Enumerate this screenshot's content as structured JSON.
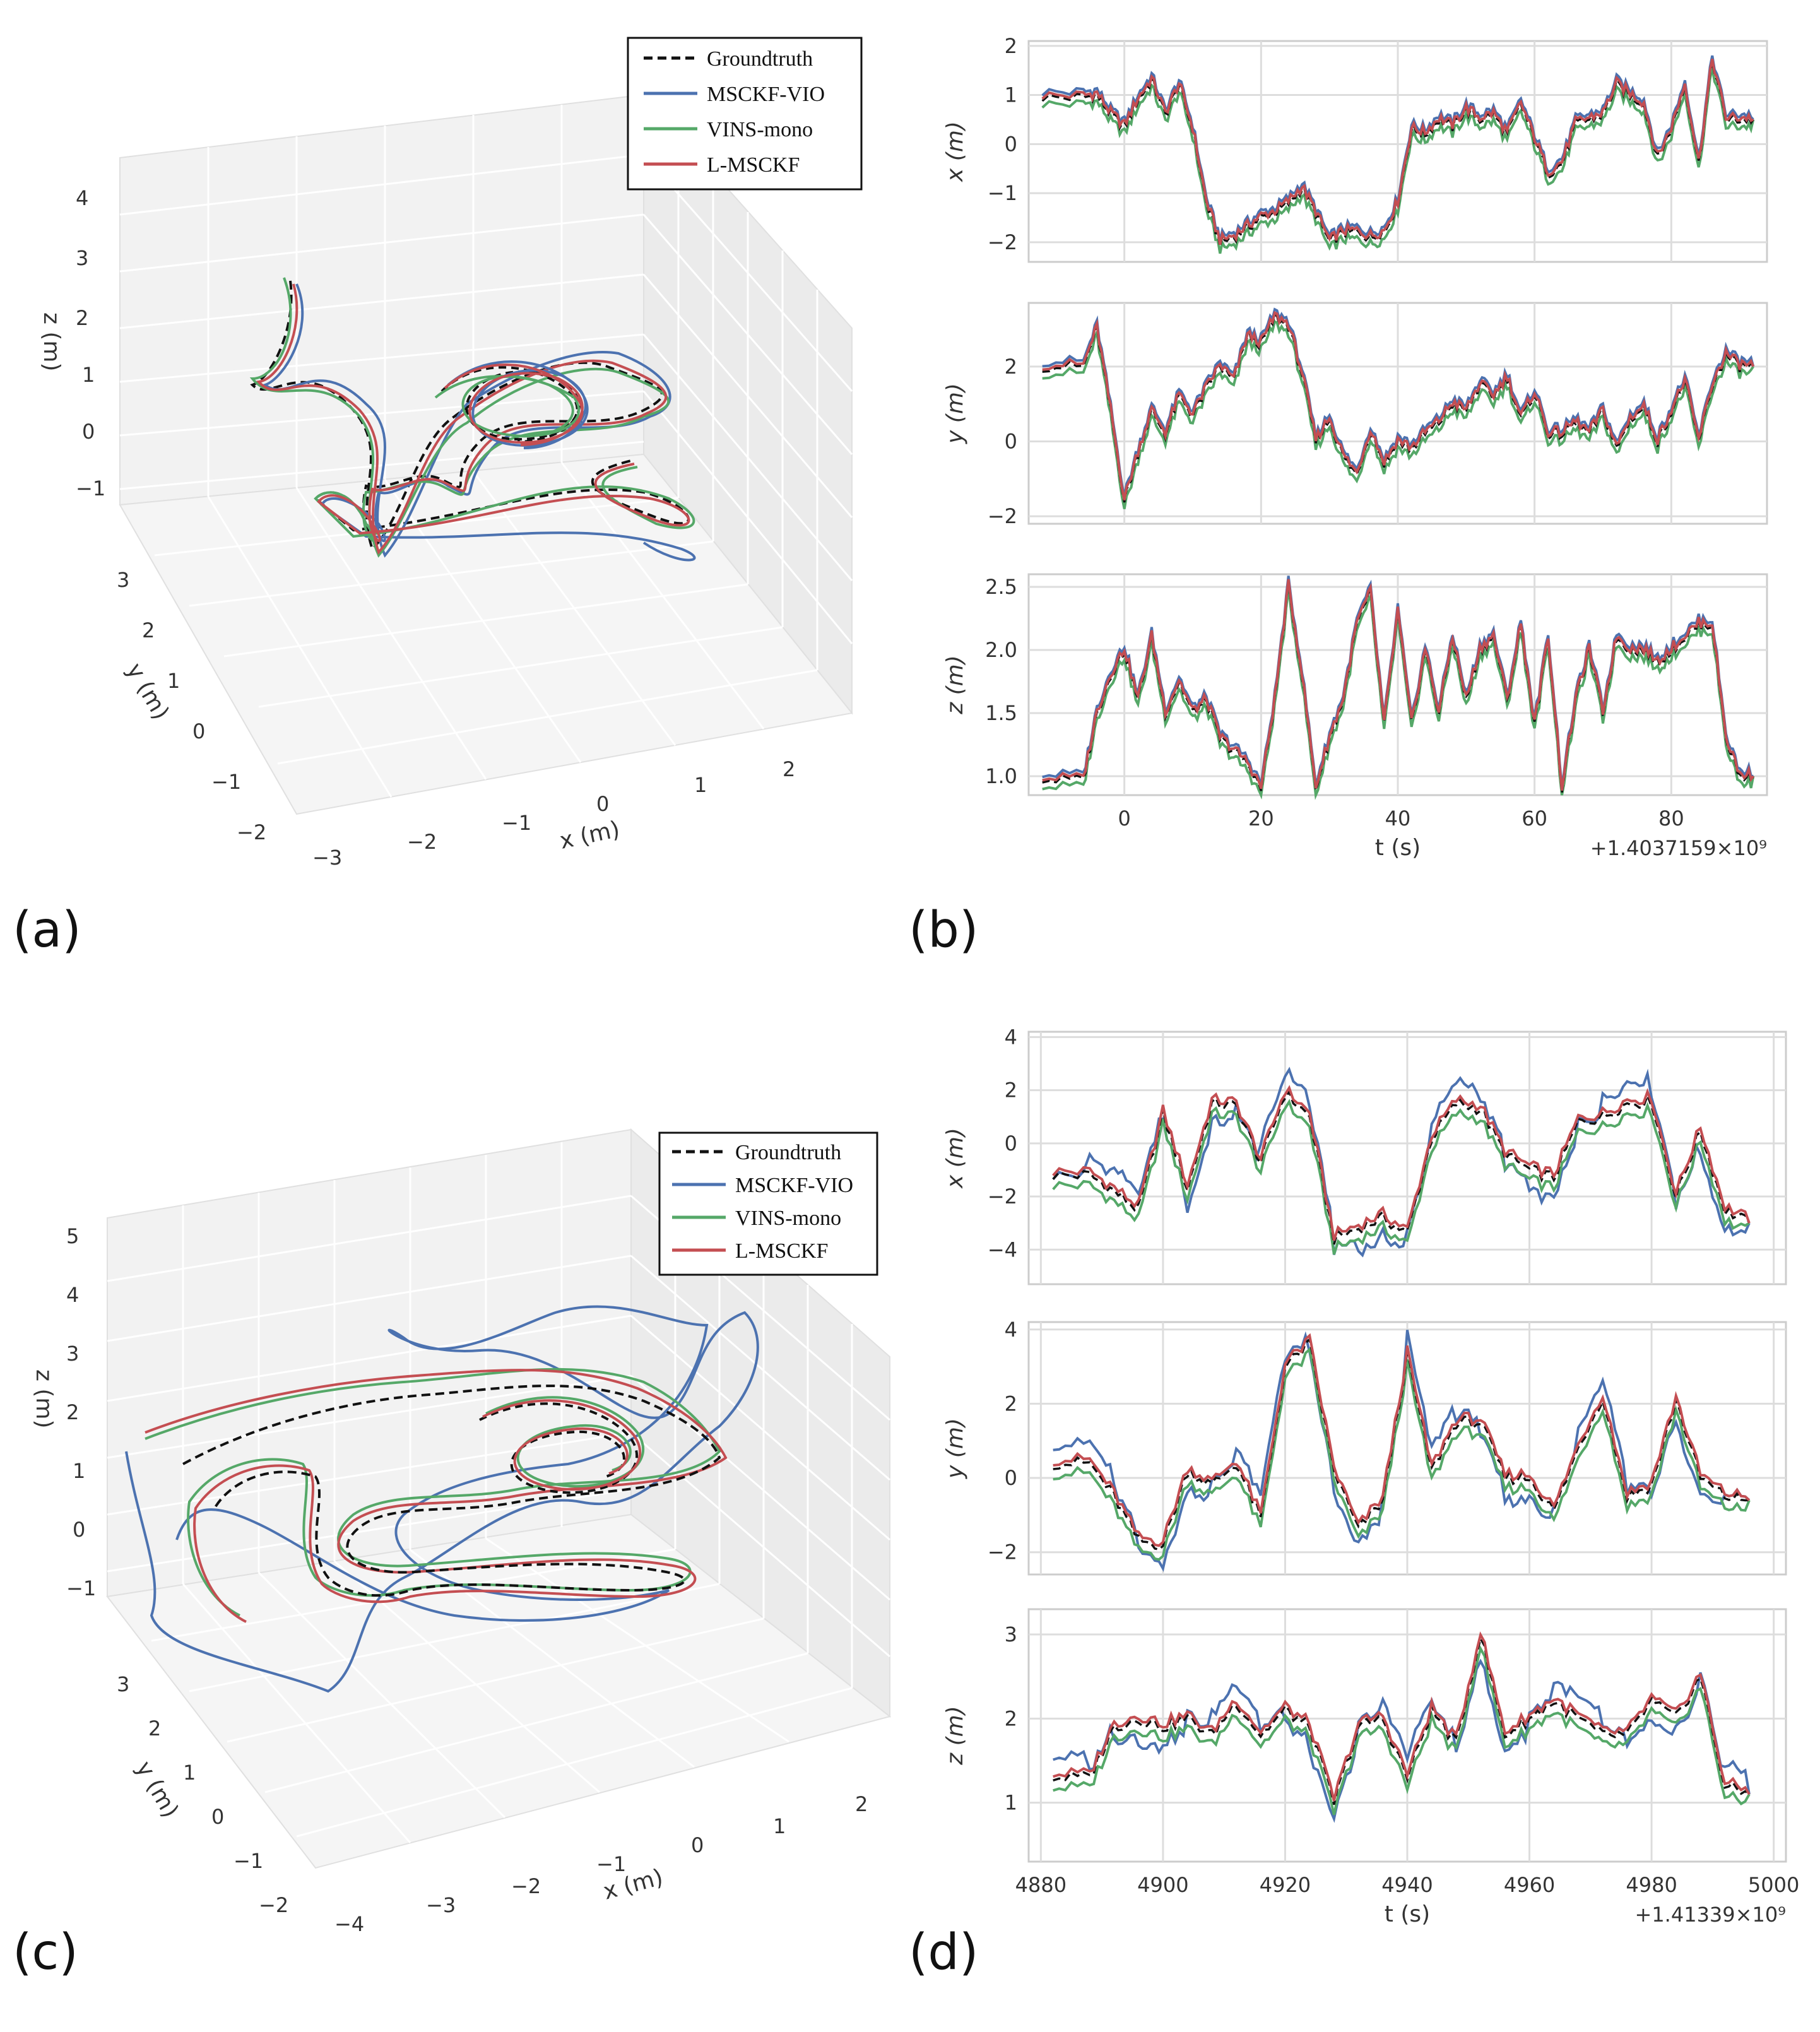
{
  "panels": [
    {
      "id": "a",
      "label": "(a)"
    },
    {
      "id": "b",
      "label": "(b)"
    },
    {
      "id": "c",
      "label": "(c)"
    },
    {
      "id": "d",
      "label": "(d)"
    }
  ],
  "legend": [
    {
      "name": "Groundtruth",
      "color": "#111111",
      "dash": true
    },
    {
      "name": "MSCKF-VIO",
      "color": "#4c72b0",
      "dash": false
    },
    {
      "name": "VINS-mono",
      "color": "#55a868",
      "dash": false
    },
    {
      "name": "L-MSCKF",
      "color": "#c44e52",
      "dash": false
    }
  ],
  "chart_data": [
    {
      "panel": "a",
      "type": "line3d",
      "xlabel": "x (m)",
      "ylabel": "y (m)",
      "zlabel": "z (m)",
      "xticks": [
        "−3",
        "−2",
        "−1",
        "0",
        "1",
        "2"
      ],
      "yticks": [
        "−2",
        "−1",
        "0",
        "1",
        "2",
        "3"
      ],
      "zticks": [
        "−1",
        "0",
        "1",
        "2",
        "3",
        "4"
      ],
      "series": [
        "Groundtruth",
        "MSCKF-VIO",
        "VINS-mono",
        "L-MSCKF"
      ]
    },
    {
      "panel": "b",
      "type": "line",
      "xlabel": "t (s)",
      "xrange": [
        -14,
        94
      ],
      "xticks": [
        0,
        20,
        40,
        60,
        80
      ],
      "xtick_labels": [
        "0",
        "20",
        "40",
        "60",
        "80"
      ],
      "offset": "+1.4037159×10⁹",
      "subplots": [
        {
          "ylabel": "x (m)",
          "yrange": [
            -2.4,
            2.1
          ],
          "yticks": [
            -2,
            -1,
            0,
            1,
            2
          ],
          "ytick_labels": [
            "−2",
            "−1",
            "0",
            "1",
            "2"
          ],
          "t": [
            -12,
            -6,
            -4,
            -2,
            0,
            2,
            4,
            6,
            8,
            10,
            12,
            14,
            16,
            18,
            20,
            22,
            24,
            26,
            28,
            30,
            32,
            34,
            36,
            38,
            40,
            42,
            44,
            46,
            48,
            50,
            52,
            54,
            56,
            58,
            60,
            62,
            64,
            66,
            68,
            70,
            72,
            74,
            76,
            78,
            80,
            82,
            84,
            86,
            88,
            90,
            92
          ],
          "values": [
            0.95,
            0.95,
            1.0,
            0.6,
            0.35,
            0.9,
            1.3,
            0.6,
            1.2,
            0.3,
            -1.2,
            -2.0,
            -1.9,
            -1.7,
            -1.5,
            -1.4,
            -1.2,
            -0.9,
            -1.4,
            -2.0,
            -1.8,
            -1.8,
            -1.9,
            -1.8,
            -1.2,
            0.3,
            0.2,
            0.5,
            0.35,
            0.7,
            0.5,
            0.6,
            0.2,
            0.8,
            0.1,
            -0.6,
            -0.4,
            0.4,
            0.5,
            0.6,
            1.2,
            1.0,
            0.8,
            -0.3,
            0.3,
            1.2,
            -0.4,
            1.7,
            0.5,
            0.5,
            0.5
          ]
        },
        {
          "ylabel": "y (m)",
          "yrange": [
            -2.2,
            3.7
          ],
          "yticks": [
            -2,
            0,
            2
          ],
          "ytick_labels": [
            "−2",
            "0",
            "2"
          ],
          "t": [
            -12,
            -6,
            -4,
            -2,
            0,
            2,
            4,
            6,
            8,
            10,
            12,
            14,
            16,
            18,
            20,
            22,
            24,
            26,
            28,
            30,
            32,
            34,
            36,
            38,
            40,
            42,
            44,
            46,
            48,
            50,
            52,
            54,
            56,
            58,
            60,
            62,
            64,
            66,
            68,
            70,
            72,
            74,
            76,
            78,
            80,
            82,
            84,
            86,
            88,
            90,
            92
          ],
          "values": [
            2.0,
            2.0,
            3.0,
            0.8,
            -1.6,
            -0.3,
            0.8,
            0.2,
            1.2,
            0.7,
            1.4,
            2.0,
            1.6,
            2.8,
            2.6,
            3.3,
            3.1,
            1.8,
            0.0,
            0.6,
            -0.4,
            -0.9,
            0.3,
            -0.6,
            0.0,
            -0.2,
            0.2,
            0.5,
            1.0,
            0.8,
            1.5,
            1.2,
            1.7,
            0.6,
            1.3,
            0.2,
            0.2,
            0.5,
            0.2,
            0.8,
            -0.2,
            0.6,
            0.9,
            0.0,
            0.8,
            1.6,
            0.0,
            1.5,
            2.3,
            2.0,
            2.0
          ]
        },
        {
          "ylabel": "z (m)",
          "yrange": [
            0.85,
            2.6
          ],
          "yticks": [
            1.0,
            1.5,
            2.0,
            2.5
          ],
          "ytick_labels": [
            "1.0",
            "1.5",
            "2.0",
            "2.5"
          ],
          "t": [
            -12,
            -6,
            -4,
            -2,
            0,
            2,
            4,
            6,
            8,
            10,
            12,
            14,
            16,
            18,
            20,
            22,
            24,
            26,
            28,
            30,
            32,
            34,
            36,
            38,
            40,
            42,
            44,
            46,
            48,
            50,
            52,
            54,
            56,
            58,
            60,
            62,
            64,
            66,
            68,
            70,
            72,
            74,
            76,
            78,
            80,
            82,
            84,
            86,
            88,
            90,
            92
          ],
          "values": [
            0.97,
            0.97,
            1.5,
            1.8,
            2.0,
            1.6,
            2.1,
            1.5,
            1.75,
            1.5,
            1.6,
            1.3,
            1.2,
            1.1,
            0.9,
            1.6,
            2.5,
            1.8,
            0.9,
            1.3,
            1.6,
            2.2,
            2.45,
            1.4,
            2.3,
            1.4,
            2.0,
            1.5,
            2.1,
            1.6,
            2.0,
            2.1,
            1.6,
            2.2,
            1.4,
            2.1,
            0.9,
            1.6,
            2.0,
            1.5,
            2.1,
            2.0,
            2.0,
            1.9,
            2.0,
            2.1,
            2.2,
            2.2,
            1.3,
            1.0,
            1.0
          ]
        }
      ]
    },
    {
      "panel": "c",
      "type": "line3d",
      "xlabel": "x (m)",
      "ylabel": "y (m)",
      "zlabel": "z (m)",
      "xticks": [
        "−4",
        "−3",
        "−2",
        "−1",
        "0",
        "1",
        "2"
      ],
      "yticks": [
        "−2",
        "−1",
        "0",
        "1",
        "2",
        "3"
      ],
      "zticks": [
        "−1",
        "0",
        "1",
        "2",
        "3",
        "4",
        "5"
      ],
      "series": [
        "Groundtruth",
        "MSCKF-VIO",
        "VINS-mono",
        "L-MSCKF"
      ]
    },
    {
      "panel": "d",
      "type": "line",
      "xlabel": "t (s)",
      "xrange": [
        4878,
        5002
      ],
      "xticks": [
        4880,
        4900,
        4920,
        4940,
        4960,
        4980,
        5000
      ],
      "xtick_labels": [
        "4880",
        "4900",
        "4920",
        "4940",
        "4960",
        "4980",
        "5000"
      ],
      "offset": "+1.41339×10⁹",
      "subplots": [
        {
          "ylabel": "x (m)",
          "yrange": [
            -5.3,
            4.2
          ],
          "yticks": [
            -4,
            -2,
            0,
            2,
            4
          ],
          "ytick_labels": [
            "−4",
            "−2",
            "0",
            "2",
            "4"
          ],
          "t": [
            4882,
            4888,
            4892,
            4896,
            4900,
            4904,
            4908,
            4912,
            4916,
            4920,
            4924,
            4928,
            4932,
            4936,
            4940,
            4944,
            4948,
            4952,
            4956,
            4960,
            4964,
            4968,
            4972,
            4976,
            4980,
            4984,
            4988,
            4992,
            4996
          ],
          "values": [
            -1.2,
            -1.2,
            -1.8,
            -2.5,
            1.1,
            -1.7,
            1.5,
            1.4,
            -0.7,
            1.9,
            1.0,
            -3.6,
            -3.2,
            -2.8,
            -3.4,
            0.2,
            1.5,
            1.3,
            -0.4,
            -1.0,
            -1.3,
            0.8,
            1.0,
            1.5,
            1.6,
            -2.0,
            0.5,
            -2.5,
            -3.0
          ]
        },
        {
          "ylabel": "y (m)",
          "yrange": [
            -2.6,
            4.2
          ],
          "yticks": [
            -2,
            0,
            2,
            4
          ],
          "ytick_labels": [
            "−2",
            "0",
            "2",
            "4"
          ],
          "t": [
            4882,
            4888,
            4892,
            4896,
            4900,
            4904,
            4908,
            4912,
            4916,
            4920,
            4924,
            4928,
            4932,
            4936,
            4940,
            4944,
            4948,
            4952,
            4956,
            4960,
            4964,
            4968,
            4972,
            4976,
            4980,
            4984,
            4988,
            4992,
            4996
          ],
          "values": [
            0.4,
            0.4,
            -0.5,
            -1.7,
            -1.8,
            0.2,
            -0.2,
            0.4,
            -1.1,
            3.0,
            3.6,
            0.2,
            -1.4,
            -0.6,
            3.3,
            0.2,
            1.5,
            1.5,
            0.0,
            0.0,
            -0.9,
            0.8,
            2.2,
            -0.5,
            -0.2,
            2.1,
            0.0,
            -0.5,
            -0.6
          ]
        },
        {
          "ylabel": "z (m)",
          "yrange": [
            0.3,
            3.3
          ],
          "yticks": [
            1,
            2,
            3
          ],
          "ytick_labels": [
            "1",
            "2",
            "3"
          ],
          "t": [
            4882,
            4888,
            4892,
            4896,
            4900,
            4904,
            4908,
            4912,
            4916,
            4920,
            4924,
            4928,
            4932,
            4936,
            4940,
            4944,
            4948,
            4952,
            4956,
            4960,
            4964,
            4968,
            4972,
            4976,
            4980,
            4984,
            4988,
            4992,
            4996
          ],
          "values": [
            1.3,
            1.3,
            1.9,
            2.0,
            1.9,
            2.0,
            1.8,
            2.2,
            1.8,
            2.1,
            1.9,
            1.0,
            1.9,
            2.0,
            1.3,
            2.1,
            1.7,
            3.0,
            1.8,
            2.0,
            2.2,
            2.0,
            1.8,
            1.8,
            2.2,
            2.0,
            2.5,
            1.2,
            1.1
          ]
        }
      ]
    }
  ]
}
